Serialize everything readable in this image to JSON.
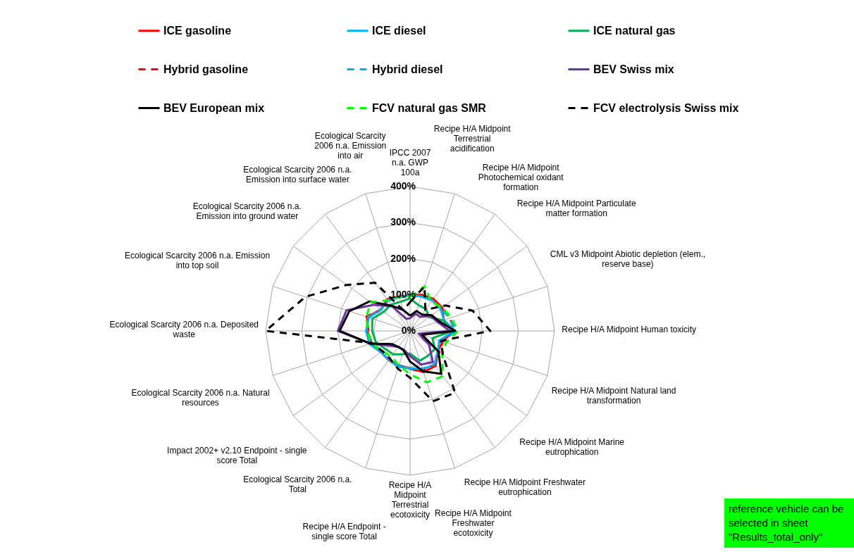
{
  "chart_data": {
    "type": "radar",
    "categories": [
      "IPCC 2007 n.a. GWP 100a",
      "Recipe H/A Midpoint Terrestrial acidification",
      "Recipe H/A Midpoint Photochemical oxidant formation",
      "Recipe H/A Midpoint Particulate matter formation",
      "CML v3 Midpoint Abiotic depletion (elem., reserve base)",
      "Recipe H/A Midpoint Human toxicity",
      "Recipe H/A Midpoint Natural land transformation",
      "Recipe H/A Midpoint Marine eutrophication",
      "Recipe H/A Midpoint Freshwater eutrophication",
      "Recipe H/A Midpoint Freshwater ecotoxicity",
      "Recipe H/A Midpoint Terrestrial ecotoxicity",
      "Recipe H/A Endpoint - single score Total",
      "Ecological Scarcity 2006 n.a. Total",
      "Impact 2002+ v2.10 Endpoint - single score Total",
      "Ecological Scarcity 2006 n.a. Natural resources",
      "Ecological Scarcity 2006 n.a. Deposited waste",
      "Ecological Scarcity 2006 n.a. Emission into top soil",
      "Ecological Scarcity 2006 n.a. Emission into ground water",
      "Ecological Scarcity 2006 n.a. Emission into surface water",
      "Ecological Scarcity 2006 n.a. Emission into air"
    ],
    "series": [
      {
        "name": "ICE gasoline",
        "color": "#ff0000",
        "line_style": "solid",
        "values": [
          100,
          105,
          110,
          110,
          98,
          120,
          95,
          95,
          120,
          120,
          105,
          100,
          100,
          100,
          115,
          118,
          125,
          100,
          108,
          100
        ]
      },
      {
        "name": "ICE diesel",
        "color": "#00b0f0",
        "line_style": "solid",
        "values": [
          100,
          100,
          105,
          105,
          98,
          125,
          85,
          95,
          115,
          112,
          103,
          105,
          100,
          100,
          118,
          122,
          120,
          100,
          105,
          98
        ]
      },
      {
        "name": "ICE natural gas",
        "color": "#00b050",
        "line_style": "solid",
        "values": [
          90,
          75,
          75,
          65,
          95,
          118,
          65,
          85,
          85,
          87,
          63,
          68,
          80,
          85,
          100,
          105,
          110,
          90,
          90,
          85
        ]
      },
      {
        "name": "Hybrid gasoline",
        "color": "#ff0000",
        "line_style": "dashed",
        "values": [
          98,
          103,
          108,
          108,
          115,
          125,
          95,
          100,
          118,
          115,
          105,
          100,
          100,
          100,
          112,
          115,
          127,
          100,
          106,
          100
        ]
      },
      {
        "name": "Hybrid diesel",
        "color": "#00b0f0",
        "line_style": "dashed",
        "values": [
          98,
          100,
          105,
          105,
          115,
          128,
          90,
          95,
          115,
          110,
          105,
          100,
          100,
          100,
          115,
          120,
          122,
          100,
          104,
          98
        ]
      },
      {
        "name": "BEV Swiss mix",
        "color": "#7030a0",
        "line_style": "solid",
        "values": [
          35,
          50,
          48,
          70,
          80,
          110,
          25,
          65,
          107,
          98,
          70,
          55,
          55,
          70,
          115,
          200,
          185,
          123,
          84,
          35
        ]
      },
      {
        "name": "BEV European mix",
        "color": "#000000",
        "line_style": "solid",
        "values": [
          42,
          58,
          56,
          74,
          85,
          125,
          35,
          97,
          147,
          118,
          85,
          57,
          55,
          62,
          115,
          195,
          177,
          139,
          86,
          61
        ]
      },
      {
        "name": "FCV natural gas SMR",
        "color": "#00ff00",
        "line_style": "dashed",
        "values": [
          95,
          130,
          100,
          110,
          120,
          133,
          105,
          110,
          155,
          150,
          120,
          100,
          88,
          95,
          112,
          117,
          127,
          135,
          105,
          98
        ]
      },
      {
        "name": "FCV electrolysis Swiss mix",
        "color": "#000000",
        "line_style": "dashed",
        "values": [
          80,
          130,
          72,
          120,
          182,
          222,
          90,
          112,
          212,
          205,
          130,
          110,
          95,
          95,
          110,
          400,
          305,
          217,
          165,
          60
        ]
      }
    ],
    "ylim": [
      0,
      400
    ],
    "yticks": [
      {
        "value": 0,
        "label": "0%"
      },
      {
        "value": 100,
        "label": "100%"
      },
      {
        "value": 200,
        "label": "200%"
      },
      {
        "value": 300,
        "label": "300%"
      },
      {
        "value": 400,
        "label": "400%"
      }
    ],
    "grid": true,
    "legend": "top",
    "annotations": [
      "reference vehicle can be selected in sheet \"Results_total_only\""
    ]
  }
}
